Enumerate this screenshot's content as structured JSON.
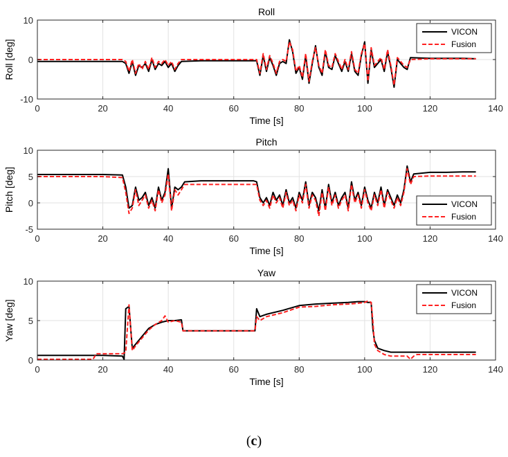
{
  "caption": {
    "open": "(",
    "letter": "c",
    "close": ")"
  },
  "chart_data": [
    {
      "type": "line",
      "title": "Roll",
      "xlabel": "Time [s]",
      "ylabel": "Roll [deg]",
      "xlim": [
        0,
        140
      ],
      "ylim": [
        -10,
        10
      ],
      "xticks": [
        0,
        20,
        40,
        60,
        80,
        100,
        120,
        140
      ],
      "yticks": [
        -10,
        0,
        10
      ],
      "grid": true,
      "legend": "top-right",
      "series": [
        {
          "name": "VICON",
          "color": "#000000",
          "style": "solid",
          "x": [
            0,
            10,
            20,
            26,
            27,
            28,
            29,
            30,
            31,
            32,
            33,
            34,
            35,
            36,
            37,
            38,
            39,
            40,
            41,
            42,
            43,
            44,
            50,
            60,
            67,
            68,
            69,
            70,
            71,
            72,
            73,
            74,
            75,
            76,
            77,
            78,
            79,
            80,
            81,
            82,
            83,
            84,
            85,
            86,
            87,
            88,
            89,
            90,
            91,
            92,
            93,
            94,
            95,
            96,
            97,
            98,
            99,
            100,
            101,
            102,
            103,
            104,
            105,
            106,
            107,
            108,
            109,
            110,
            111,
            112,
            113,
            114,
            120,
            125,
            130,
            134
          ],
          "y": [
            -0.5,
            -0.5,
            -0.5,
            -0.5,
            -1,
            -3.5,
            -0.5,
            -4,
            -1.5,
            -2,
            -1,
            -3,
            0,
            -2.5,
            -1,
            -1.5,
            -0.5,
            -2,
            -1,
            -3,
            -1.5,
            -0.5,
            -0.3,
            -0.3,
            -0.3,
            -4,
            1,
            -3,
            0.5,
            -1.5,
            -4,
            -1,
            -0.5,
            -1,
            5,
            2,
            -3.5,
            -2,
            -5,
            1,
            -6,
            -1,
            3.5,
            -2,
            -4,
            2,
            -2,
            -2.5,
            1,
            -1,
            -3,
            -0.5,
            -3,
            1.5,
            -3,
            -4,
            1,
            4.5,
            -6,
            2.5,
            -2,
            -1,
            0,
            -3,
            2,
            -2,
            -7,
            0,
            -1,
            -2,
            -2.5,
            0.5,
            0.3,
            0.3,
            0.3,
            0.2
          ]
        },
        {
          "name": "Fusion",
          "color": "#ff2020",
          "style": "dashed",
          "x": [
            0,
            10,
            20,
            26,
            27,
            28,
            29,
            30,
            31,
            32,
            33,
            34,
            35,
            36,
            37,
            38,
            39,
            40,
            41,
            42,
            43,
            44,
            50,
            60,
            67,
            68,
            69,
            70,
            71,
            72,
            73,
            74,
            75,
            76,
            77,
            78,
            79,
            80,
            81,
            82,
            83,
            84,
            85,
            86,
            87,
            88,
            89,
            90,
            91,
            92,
            93,
            94,
            95,
            96,
            97,
            98,
            99,
            100,
            101,
            102,
            103,
            104,
            105,
            106,
            107,
            108,
            109,
            110,
            111,
            112,
            113,
            114,
            120,
            125,
            130,
            134
          ],
          "y": [
            0,
            0,
            0,
            0,
            -0.5,
            -3,
            0,
            -3.5,
            -1,
            -2.5,
            -0.5,
            -2.5,
            0.5,
            -2,
            -0.5,
            -1,
            0,
            -1.5,
            -0.5,
            -2.5,
            -1,
            0,
            0,
            0,
            0,
            -3.5,
            1.5,
            -2.5,
            1,
            -1,
            -3.5,
            -0.5,
            0,
            -0.5,
            4.5,
            2.5,
            -3,
            -1.5,
            -4.5,
            1.5,
            -5.5,
            -0.5,
            3,
            -1.5,
            -3.5,
            2.5,
            -1.5,
            -2,
            1.5,
            -0.5,
            -2.5,
            0,
            -2.5,
            2,
            -2.5,
            -3.5,
            1.5,
            4,
            -5.5,
            3,
            -1.5,
            -0.5,
            0.5,
            -2.5,
            2.5,
            -1.5,
            -6.5,
            0.5,
            -0.5,
            -1.5,
            -2,
            0,
            0.2,
            0.2,
            0.2,
            0.2
          ]
        }
      ]
    },
    {
      "type": "line",
      "title": "Pitch",
      "xlabel": "Time [s]",
      "ylabel": "Pitch [deg]",
      "xlim": [
        0,
        140
      ],
      "ylim": [
        -5,
        10
      ],
      "xticks": [
        0,
        20,
        40,
        60,
        80,
        100,
        120,
        140
      ],
      "yticks": [
        -5,
        0,
        5,
        10
      ],
      "grid": true,
      "legend": "bottom-right",
      "series": [
        {
          "name": "VICON",
          "color": "#000000",
          "style": "solid",
          "x": [
            0,
            10,
            20,
            26,
            27,
            28,
            29,
            30,
            31,
            32,
            33,
            34,
            35,
            36,
            37,
            38,
            39,
            40,
            41,
            42,
            43,
            44,
            45,
            50,
            60,
            66,
            67,
            68,
            69,
            70,
            71,
            72,
            73,
            74,
            75,
            76,
            77,
            78,
            79,
            80,
            81,
            82,
            83,
            84,
            85,
            86,
            87,
            88,
            89,
            90,
            91,
            92,
            93,
            94,
            95,
            96,
            97,
            98,
            99,
            100,
            101,
            102,
            103,
            104,
            105,
            106,
            107,
            108,
            109,
            110,
            111,
            112,
            113,
            114,
            115,
            120,
            125,
            130,
            134
          ],
          "y": [
            5.4,
            5.4,
            5.4,
            5.3,
            3,
            -1,
            -0.5,
            3,
            0.5,
            1,
            2,
            -0.5,
            1,
            -1,
            3,
            0.5,
            2,
            6.5,
            -1,
            3,
            2.5,
            3,
            4,
            4.2,
            4.2,
            4.2,
            4,
            1,
            0,
            1,
            -0.5,
            2,
            0.5,
            1.5,
            -0.5,
            2.5,
            0,
            1,
            -1,
            2,
            0.5,
            4,
            -0.5,
            2,
            1,
            -1.5,
            2.5,
            -1,
            3.5,
            0,
            2,
            -0.5,
            1,
            2,
            -1,
            4,
            0.5,
            2,
            -0.5,
            3,
            0.5,
            -1,
            2,
            0,
            3,
            -0.5,
            2.5,
            1,
            -0.5,
            1.5,
            0,
            2.5,
            7,
            4,
            5.5,
            5.8,
            5.8,
            5.9,
            5.9
          ]
        },
        {
          "name": "Fusion",
          "color": "#ff2020",
          "style": "dashed",
          "x": [
            0,
            10,
            20,
            26,
            27,
            28,
            29,
            30,
            31,
            32,
            33,
            34,
            35,
            36,
            37,
            38,
            39,
            40,
            41,
            42,
            43,
            44,
            45,
            50,
            60,
            66,
            67,
            68,
            69,
            70,
            71,
            72,
            73,
            74,
            75,
            76,
            77,
            78,
            79,
            80,
            81,
            82,
            83,
            84,
            85,
            86,
            87,
            88,
            89,
            90,
            91,
            92,
            93,
            94,
            95,
            96,
            97,
            98,
            99,
            100,
            101,
            102,
            103,
            104,
            105,
            106,
            107,
            108,
            109,
            110,
            111,
            112,
            113,
            114,
            115,
            120,
            125,
            130,
            134
          ],
          "y": [
            5,
            5,
            5,
            4.8,
            2,
            -2,
            -1,
            2.5,
            -0.5,
            0.5,
            1.5,
            -1,
            0.5,
            -1.5,
            2.5,
            0,
            1.5,
            5.5,
            -1.5,
            2.5,
            1.5,
            2.5,
            3.5,
            3.5,
            3.5,
            3.5,
            3.5,
            0.5,
            -0.5,
            0.5,
            -1,
            1.5,
            0,
            1,
            -1,
            2,
            -0.5,
            0.5,
            -1.5,
            1.5,
            0,
            3.5,
            -1,
            1.5,
            0.5,
            -2.5,
            2,
            -1.5,
            3,
            -0.5,
            1.5,
            -1,
            0.5,
            1.5,
            -1.5,
            3.5,
            0,
            1.5,
            -1,
            2.5,
            0,
            -1.5,
            1.5,
            -0.5,
            2.5,
            -1,
            2,
            0.5,
            -1,
            1,
            -0.5,
            2,
            6.5,
            3.5,
            5,
            5.1,
            5.1,
            5.1,
            5.1
          ]
        }
      ]
    },
    {
      "type": "line",
      "title": "Yaw",
      "xlabel": "Time [s]",
      "ylabel": "Yaw [deg]",
      "xlim": [
        0,
        140
      ],
      "ylim": [
        0,
        10
      ],
      "xticks": [
        0,
        20,
        40,
        60,
        80,
        100,
        120,
        140
      ],
      "yticks": [
        0,
        5,
        10
      ],
      "grid": true,
      "legend": "top-right",
      "series": [
        {
          "name": "VICON",
          "color": "#000000",
          "style": "solid",
          "x": [
            0,
            10,
            20,
            26,
            26.5,
            27,
            28,
            29,
            30,
            32,
            34,
            36,
            38,
            40,
            42,
            44,
            44.5,
            50,
            60,
            66.5,
            67,
            68,
            70,
            75,
            80,
            85,
            90,
            95,
            98,
            100,
            101,
            102,
            102.5,
            103,
            104,
            106,
            108,
            110,
            115,
            120,
            125,
            130,
            134
          ],
          "y": [
            0.6,
            0.6,
            0.6,
            0.5,
            0.1,
            6.5,
            6.8,
            1.5,
            2,
            3,
            4,
            4.5,
            4.8,
            5,
            5,
            5.1,
            3.7,
            3.7,
            3.7,
            3.7,
            6.5,
            5.5,
            5.8,
            6.3,
            6.9,
            7.1,
            7.2,
            7.3,
            7.4,
            7.4,
            7.3,
            7.3,
            4,
            2.5,
            1.5,
            1.2,
            1,
            1,
            1,
            1,
            1,
            1,
            1
          ]
        },
        {
          "name": "Fusion",
          "color": "#ff2020",
          "style": "dashed",
          "x": [
            0,
            10,
            17,
            18,
            20,
            26,
            27,
            28,
            29,
            30,
            32,
            34,
            36,
            38,
            39,
            40,
            42,
            44,
            44.5,
            50,
            60,
            66.5,
            67,
            68,
            70,
            75,
            80,
            85,
            90,
            95,
            98,
            100,
            101,
            102,
            102.5,
            103,
            104,
            106,
            108,
            110,
            113,
            114,
            115,
            116,
            120,
            125,
            130,
            134
          ],
          "y": [
            0.1,
            0.1,
            0.1,
            0.8,
            0.8,
            0.8,
            1,
            7,
            1.2,
            1.8,
            2.8,
            3.8,
            4.5,
            5,
            5.6,
            4.8,
            5,
            4.8,
            3.7,
            3.7,
            3.7,
            3.7,
            5.5,
            5,
            5.5,
            6,
            6.7,
            6.8,
            7,
            7.1,
            7.2,
            7.3,
            7.5,
            7.3,
            5,
            2,
            1.2,
            0.7,
            0.5,
            0.5,
            0.5,
            0.1,
            0.5,
            0.7,
            0.7,
            0.7,
            0.7,
            0.7
          ]
        }
      ]
    }
  ]
}
